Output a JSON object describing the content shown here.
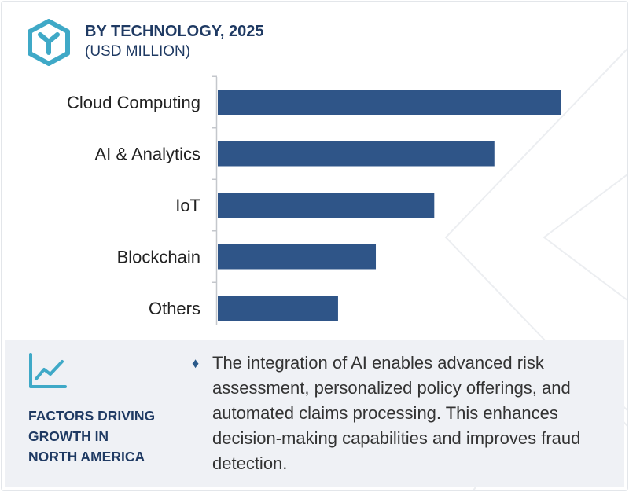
{
  "header": {
    "title": "BY TECHNOLOGY, 2025",
    "subtitle": "(USD MILLION)",
    "logo_icon": "cube-logo-icon"
  },
  "colors": {
    "bar": "#2f5588",
    "title": "#1f3a63",
    "logo": "#3fa9c7",
    "panel_bg": "#eff1f5"
  },
  "chart_data": {
    "type": "bar",
    "orientation": "horizontal",
    "title": "BY TECHNOLOGY, 2025",
    "subtitle": "(USD MILLION)",
    "categories": [
      "Cloud Computing",
      "AI & Analytics",
      "IoT",
      "Blockchain",
      "Others"
    ],
    "values": [
      100,
      80.5,
      63,
      46,
      35
    ],
    "xlabel": "",
    "ylabel": "",
    "xlim": [
      0,
      100
    ],
    "grid": false,
    "legend": "none",
    "tick_labels_x_visible": false
  },
  "factors": {
    "icon": "trend-line-icon",
    "title_lines": [
      "FACTORS DRIVING",
      "GROWTH IN",
      "NORTH AMERICA"
    ],
    "bullet": "♦",
    "text": "The integration of AI enables advanced risk assessment, personalized policy offerings, and automated claims processing. This enhances decision-making capabilities and improves fraud detection."
  }
}
